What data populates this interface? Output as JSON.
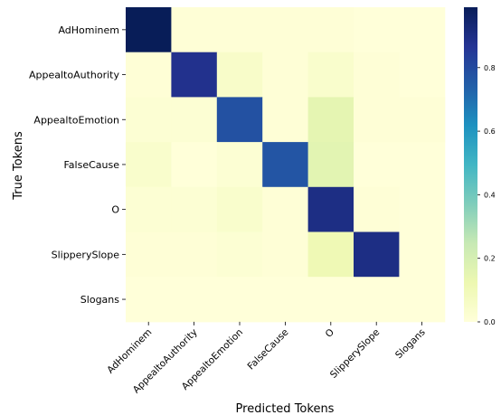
{
  "chart_data": {
    "type": "heatmap",
    "title": "",
    "xlabel": "Predicted Tokens",
    "ylabel": "True Tokens",
    "x_categories": [
      "AdHominem",
      "AppealtoAuthority",
      "AppealtoEmotion",
      "FalseCause",
      "O",
      "SlipperySlope",
      "Slogans"
    ],
    "y_categories": [
      "AdHominem",
      "AppealtoAuthority",
      "AppealtoEmotion",
      "FalseCause",
      "O",
      "SlipperySlope",
      "Slogans"
    ],
    "values": [
      [
        0.99,
        0.01,
        0.01,
        0.01,
        0.01,
        0.0,
        0.0
      ],
      [
        0.01,
        0.88,
        0.05,
        0.01,
        0.04,
        0.01,
        0.0
      ],
      [
        0.02,
        0.02,
        0.78,
        0.01,
        0.15,
        0.01,
        0.01
      ],
      [
        0.04,
        0.0,
        0.02,
        0.77,
        0.16,
        0.0,
        0.0
      ],
      [
        0.02,
        0.02,
        0.04,
        0.01,
        0.9,
        0.01,
        0.0
      ],
      [
        0.01,
        0.01,
        0.02,
        0.01,
        0.11,
        0.9,
        0.0
      ],
      [
        0.0,
        0.0,
        0.0,
        0.0,
        0.0,
        0.0,
        0.0
      ]
    ],
    "colorbar": {
      "colormap": "YlGnBu",
      "range": [
        0.0,
        0.99
      ],
      "ticks": [
        "0.0",
        "0.2",
        "0.4",
        "0.6",
        "0.8"
      ]
    },
    "grid": false,
    "legend": "none"
  }
}
